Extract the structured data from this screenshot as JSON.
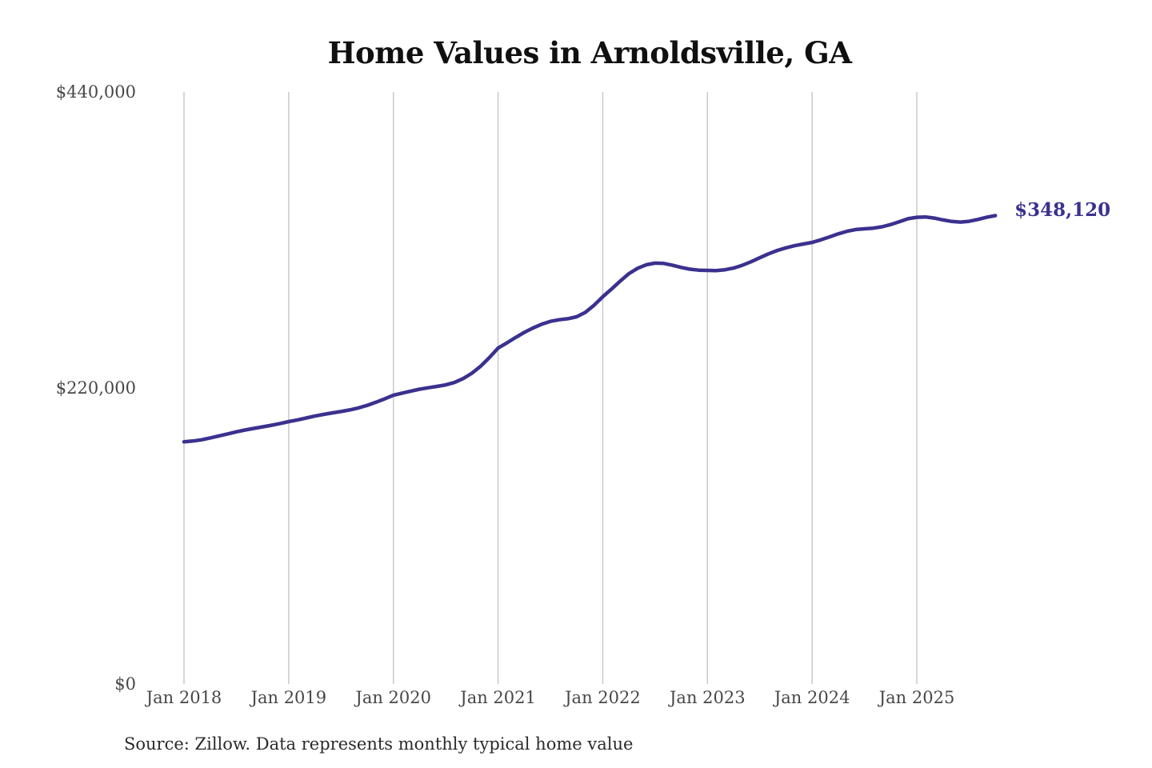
{
  "title": "Home Values in Arnoldsville, GA",
  "end_label": "$348,120",
  "source_note": "Source: Zillow. Data represents monthly typical home value",
  "colors": {
    "line": "#3a318f",
    "end_label": "#3a318f",
    "gridline": "#c9c9c9",
    "axis_text": "#474747",
    "title_text": "#101010",
    "background": "#ffffff"
  },
  "y_axis": {
    "ticks": [
      {
        "label": "$0",
        "value": 0
      },
      {
        "label": "$220,000",
        "value": 220000
      },
      {
        "label": "$440,000",
        "value": 440000
      }
    ]
  },
  "x_axis": {
    "ticks": [
      {
        "label": "Jan 2018",
        "month_index": 0
      },
      {
        "label": "Jan 2019",
        "month_index": 12
      },
      {
        "label": "Jan 2020",
        "month_index": 24
      },
      {
        "label": "Jan 2021",
        "month_index": 36
      },
      {
        "label": "Jan 2022",
        "month_index": 48
      },
      {
        "label": "Jan 2023",
        "month_index": 60
      },
      {
        "label": "Jan 2024",
        "month_index": 72
      },
      {
        "label": "Jan 2025",
        "month_index": 84
      }
    ]
  },
  "chart_data": {
    "type": "line",
    "title": "Home Values in Arnoldsville, GA",
    "xlabel": "",
    "ylabel": "",
    "ylim": [
      0,
      440000
    ],
    "grid": "vertical-only",
    "legend": "none",
    "last_point_annotation": "$348,120",
    "series": [
      {
        "name": "Monthly typical home value (USD)",
        "x": [
          "2018-01",
          "2018-02",
          "2018-03",
          "2018-04",
          "2018-05",
          "2018-06",
          "2018-07",
          "2018-08",
          "2018-09",
          "2018-10",
          "2018-11",
          "2018-12",
          "2019-01",
          "2019-02",
          "2019-03",
          "2019-04",
          "2019-05",
          "2019-06",
          "2019-07",
          "2019-08",
          "2019-09",
          "2019-10",
          "2019-11",
          "2019-12",
          "2020-01",
          "2020-02",
          "2020-03",
          "2020-04",
          "2020-05",
          "2020-06",
          "2020-07",
          "2020-08",
          "2020-09",
          "2020-10",
          "2020-11",
          "2020-12",
          "2021-01",
          "2021-02",
          "2021-03",
          "2021-04",
          "2021-05",
          "2021-06",
          "2021-07",
          "2021-08",
          "2021-09",
          "2021-10",
          "2021-11",
          "2021-12",
          "2022-01",
          "2022-02",
          "2022-03",
          "2022-04",
          "2022-05",
          "2022-06",
          "2022-07",
          "2022-08",
          "2022-09",
          "2022-10",
          "2022-11",
          "2022-12",
          "2023-01",
          "2023-02",
          "2023-03",
          "2023-04",
          "2023-05",
          "2023-06",
          "2023-07",
          "2023-08",
          "2023-09",
          "2023-10",
          "2023-11",
          "2023-12",
          "2024-01",
          "2024-02",
          "2024-03",
          "2024-04",
          "2024-05",
          "2024-06",
          "2024-07",
          "2024-08",
          "2024-09",
          "2024-10",
          "2024-11",
          "2024-12",
          "2025-01",
          "2025-02",
          "2025-03",
          "2025-04",
          "2025-05",
          "2025-06",
          "2025-07",
          "2025-08",
          "2025-09",
          "2025-10"
        ],
        "values": [
          180000,
          180600,
          181500,
          182900,
          184400,
          185900,
          187400,
          188800,
          190000,
          191100,
          192300,
          193600,
          195000,
          196300,
          197700,
          199100,
          200400,
          201500,
          202500,
          203700,
          205200,
          207100,
          209400,
          211900,
          214600,
          216200,
          217700,
          219100,
          220200,
          221200,
          222300,
          224100,
          227000,
          231000,
          236200,
          242600,
          249700,
          253500,
          257500,
          261300,
          264600,
          267400,
          269500,
          270700,
          271500,
          272900,
          276200,
          281500,
          287800,
          293500,
          299500,
          305000,
          309000,
          311600,
          312800,
          312600,
          311200,
          309600,
          308300,
          307600,
          307400,
          307300,
          307900,
          309100,
          311200,
          313800,
          316800,
          319700,
          322200,
          324200,
          325800,
          327000,
          328200,
          330100,
          332300,
          334600,
          336500,
          337800,
          338300,
          338800,
          339800,
          341500,
          343600,
          345800,
          346900,
          347100,
          346300,
          344900,
          343800,
          343300,
          343900,
          345300,
          346900,
          348120
        ]
      }
    ]
  }
}
